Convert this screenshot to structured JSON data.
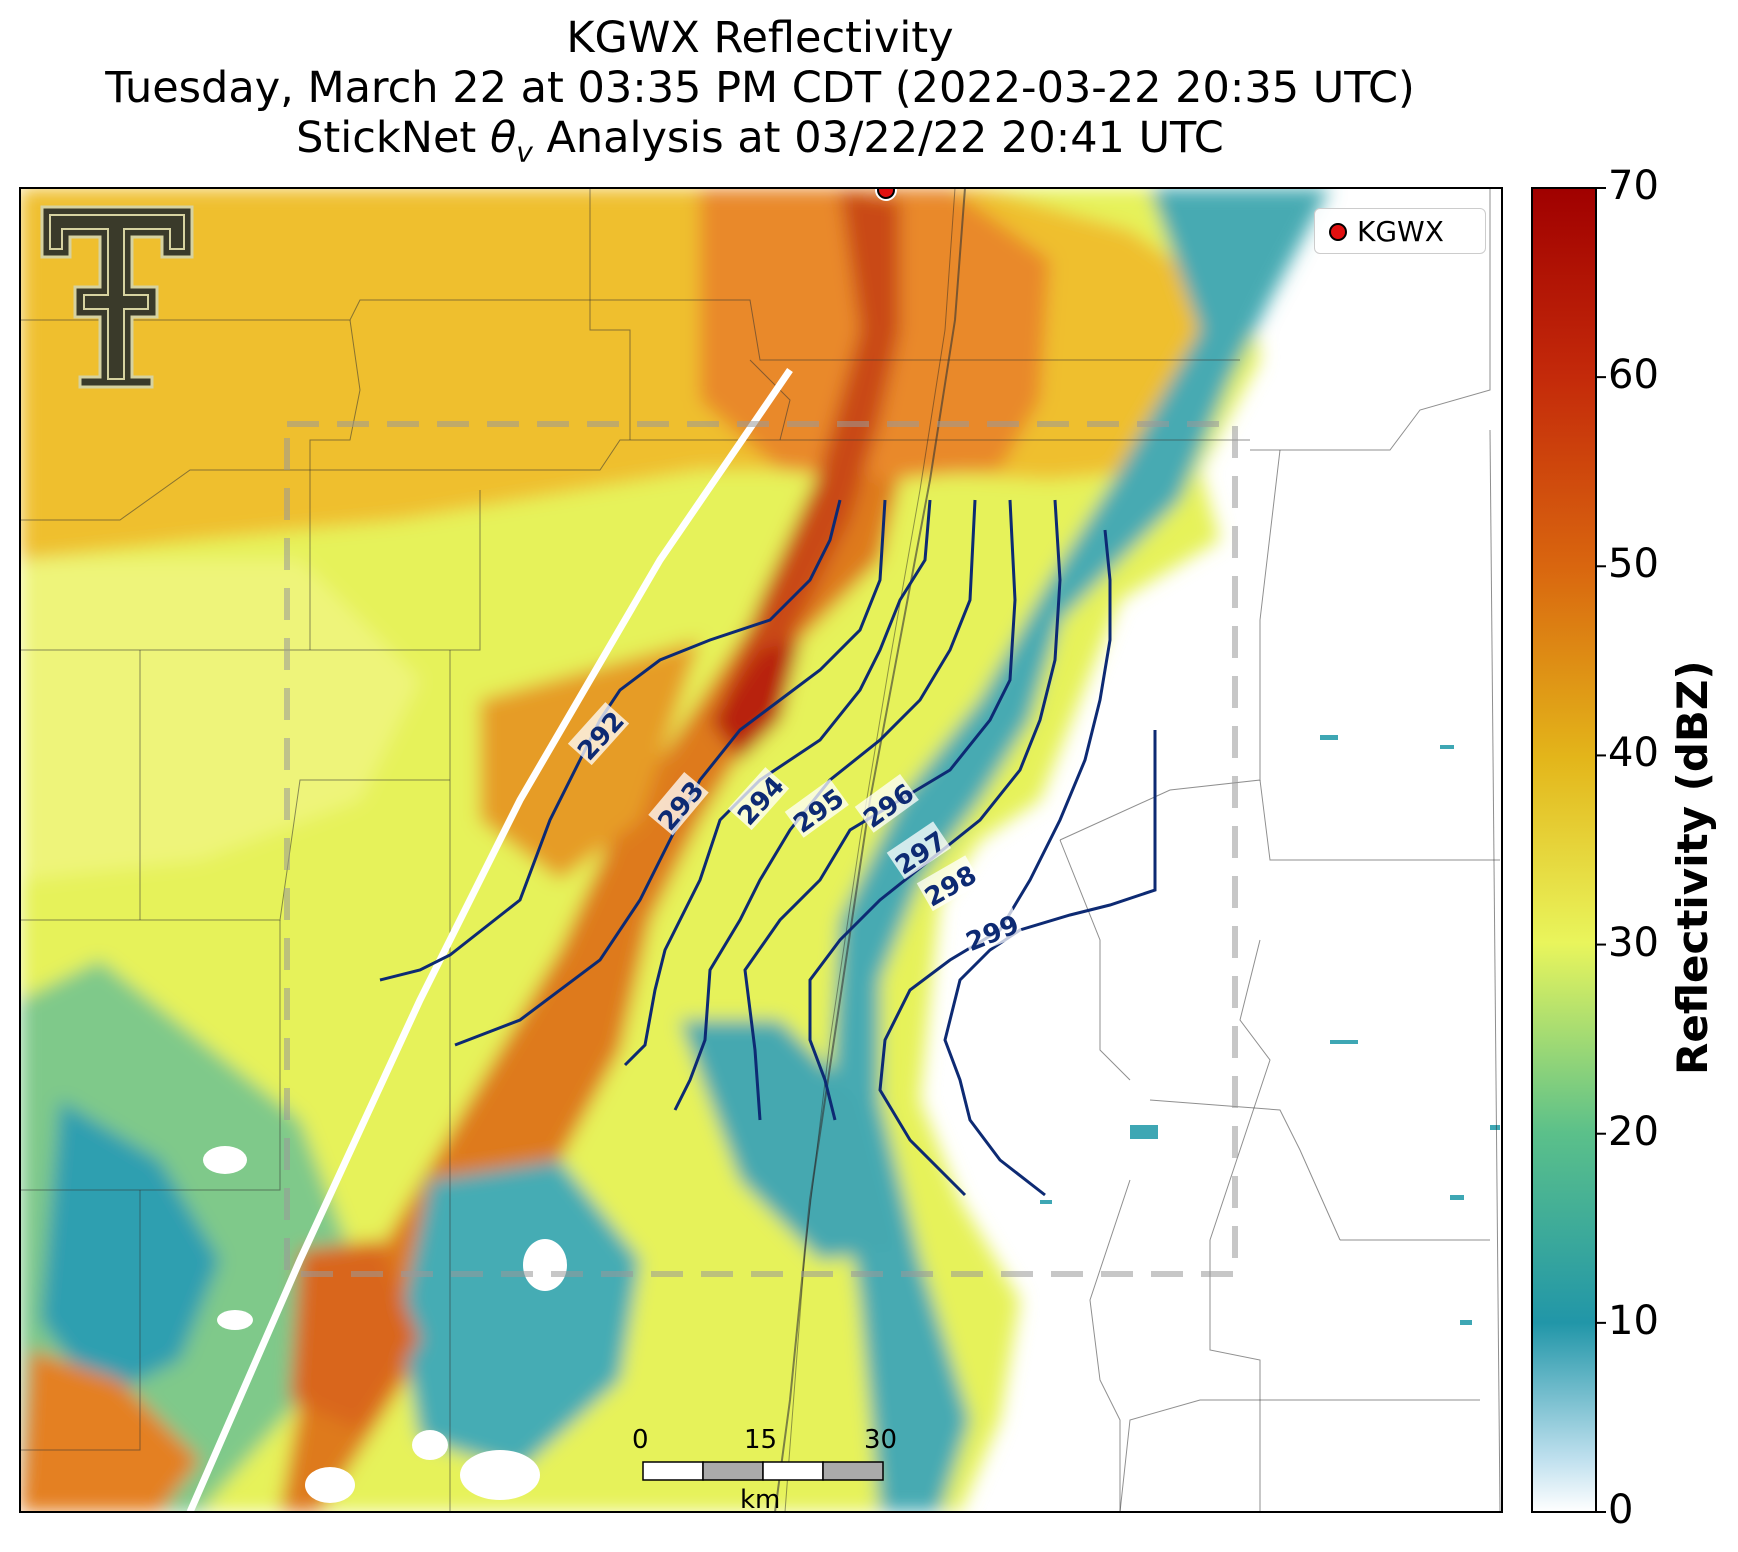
{
  "title": {
    "line1": "KGWX Reflectivity",
    "line2": "Tuesday, March 22 at 03:35 PM CDT (2022-03-22 20:35 UTC)",
    "line3": "StickNet θv Analysis at 03/22/22 20:41 UTC"
  },
  "legend": {
    "marker_label": "KGWX",
    "marker_color": "#e11010"
  },
  "colorbar": {
    "label": "Reflectivity (dBZ)",
    "ticks": [
      "0",
      "10",
      "20",
      "30",
      "40",
      "50",
      "60",
      "70"
    ],
    "range": [
      0,
      70
    ],
    "colors": [
      "#ffffff",
      "#2196a8",
      "#5bc08a",
      "#e9f55c",
      "#e3b51a",
      "#d9660f",
      "#b5150c",
      "#a00000"
    ]
  },
  "contours": {
    "variable": "StickNet θv",
    "color": "#0d2a73",
    "levels": [
      "292",
      "293",
      "294",
      "295",
      "296",
      "297",
      "298",
      "299"
    ]
  },
  "scale_bar": {
    "ticks": [
      "0",
      "15",
      "30"
    ],
    "unit": "km"
  },
  "logo": "texas-tech-double-t-logo",
  "analysis_box": "dashed-gray-rectangle"
}
